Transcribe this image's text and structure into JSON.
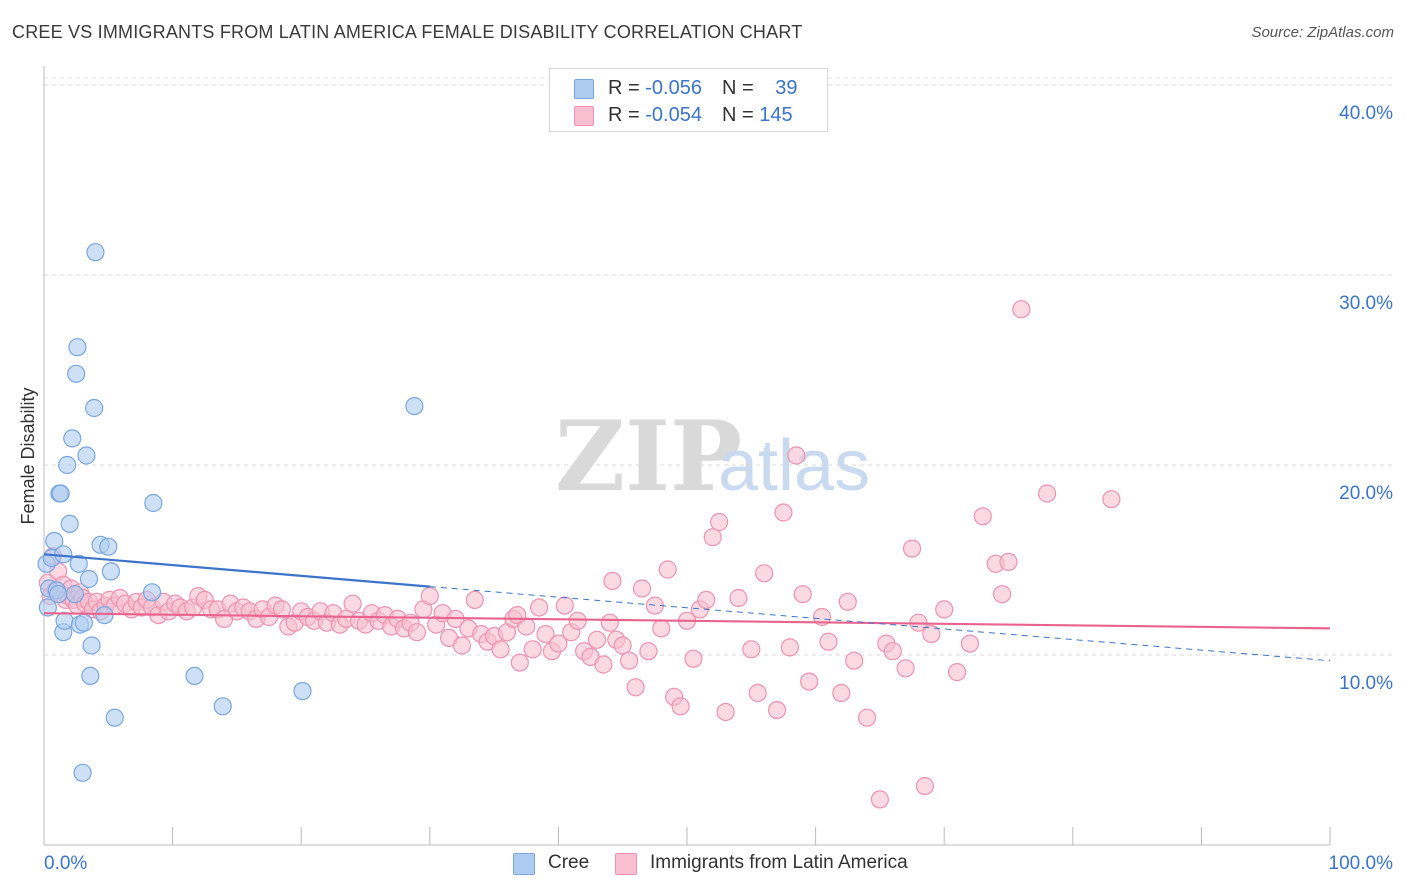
{
  "title": "CREE VS IMMIGRANTS FROM LATIN AMERICA FEMALE DISABILITY CORRELATION CHART",
  "source": "Source: ZipAtlas.com",
  "watermark": {
    "zip": "ZIP",
    "atlas": "atlas"
  },
  "legend": {
    "rows": [
      {
        "r_label": "R = ",
        "r_value": "-0.056",
        "n_label": "N = ",
        "n_value": "39",
        "color": "#aecbf0",
        "border": "#7aa6e0"
      },
      {
        "r_label": "R = ",
        "r_value": "-0.054",
        "n_label": "N = ",
        "n_value": "145",
        "color": "#f7bfd0",
        "border": "#ee92b0"
      }
    ]
  },
  "bottom_legend": [
    {
      "label": "Cree",
      "color": "#aecbf0",
      "border": "#7aa6e0"
    },
    {
      "label": "Immigrants from Latin America",
      "color": "#f7bfd0",
      "border": "#ee92b0"
    }
  ],
  "chart_data": {
    "type": "scatter",
    "ylabel": "Female Disability",
    "xlabel": "",
    "xlim": [
      0,
      100
    ],
    "ylim": [
      0,
      41
    ],
    "x_tick_labels": [
      "0.0%",
      "100.0%"
    ],
    "y_ticks": [
      10,
      20,
      30,
      40
    ],
    "y_tick_labels": [
      "10.0%",
      "20.0%",
      "30.0%",
      "40.0%"
    ],
    "grid": true,
    "colors": {
      "cree": "#3b74c9",
      "cree_fill": "#aecbf0",
      "latin": "#e8648e",
      "latin_fill": "#f7bfd0",
      "axis_text": "#3b74c9"
    },
    "series": [
      {
        "name": "Cree",
        "points": [
          [
            0.2,
            14.8
          ],
          [
            0.4,
            13.5
          ],
          [
            0.6,
            15.1
          ],
          [
            0.8,
            16.0
          ],
          [
            1.0,
            13.4
          ],
          [
            1.2,
            18.5
          ],
          [
            1.3,
            18.5
          ],
          [
            1.5,
            15.3
          ],
          [
            1.5,
            11.2
          ],
          [
            1.6,
            11.8
          ],
          [
            1.8,
            20.0
          ],
          [
            2.0,
            16.9
          ],
          [
            2.2,
            21.4
          ],
          [
            2.4,
            13.2
          ],
          [
            2.5,
            24.8
          ],
          [
            2.6,
            26.2
          ],
          [
            2.7,
            14.8
          ],
          [
            2.8,
            11.6
          ],
          [
            3.0,
            3.8
          ],
          [
            3.1,
            11.7
          ],
          [
            3.3,
            20.5
          ],
          [
            3.5,
            14.0
          ],
          [
            3.6,
            8.9
          ],
          [
            3.7,
            10.5
          ],
          [
            3.9,
            23.0
          ],
          [
            4.0,
            31.2
          ],
          [
            4.4,
            15.8
          ],
          [
            4.7,
            12.1
          ],
          [
            5.0,
            15.7
          ],
          [
            5.2,
            14.4
          ],
          [
            5.5,
            6.7
          ],
          [
            8.4,
            13.3
          ],
          [
            8.5,
            18.0
          ],
          [
            11.7,
            8.9
          ],
          [
            13.9,
            7.3
          ],
          [
            20.1,
            8.1
          ],
          [
            28.8,
            23.1
          ],
          [
            0.3,
            12.5
          ],
          [
            1.1,
            13.2
          ]
        ],
        "trend_solid": [
          [
            0,
            15.3
          ],
          [
            30,
            13.6
          ]
        ],
        "trend_dashed": [
          [
            30,
            13.6
          ],
          [
            100,
            9.7
          ]
        ]
      },
      {
        "name": "Immigrants from Latin America",
        "points": [
          [
            0.3,
            13.8
          ],
          [
            0.5,
            13.1
          ],
          [
            0.7,
            15.2
          ],
          [
            0.9,
            13.4
          ],
          [
            1.1,
            14.4
          ],
          [
            1.3,
            13.2
          ],
          [
            1.5,
            13.7
          ],
          [
            1.7,
            12.9
          ],
          [
            1.9,
            13.1
          ],
          [
            2.1,
            13.5
          ],
          [
            2.3,
            12.9
          ],
          [
            2.6,
            12.6
          ],
          [
            2.8,
            13.3
          ],
          [
            3.0,
            13.0
          ],
          [
            3.2,
            12.7
          ],
          [
            3.5,
            12.8
          ],
          [
            3.8,
            12.4
          ],
          [
            4.1,
            12.8
          ],
          [
            4.4,
            12.3
          ],
          [
            4.8,
            12.6
          ],
          [
            5.1,
            12.9
          ],
          [
            5.5,
            12.6
          ],
          [
            5.9,
            13.0
          ],
          [
            6.3,
            12.7
          ],
          [
            6.8,
            12.4
          ],
          [
            7.2,
            12.8
          ],
          [
            7.6,
            12.5
          ],
          [
            8.0,
            12.9
          ],
          [
            8.4,
            12.5
          ],
          [
            8.9,
            12.1
          ],
          [
            9.3,
            12.8
          ],
          [
            9.7,
            12.3
          ],
          [
            10.2,
            12.7
          ],
          [
            10.6,
            12.5
          ],
          [
            11.1,
            12.3
          ],
          [
            11.6,
            12.5
          ],
          [
            12.0,
            13.1
          ],
          [
            12.5,
            12.9
          ],
          [
            13.0,
            12.4
          ],
          [
            13.5,
            12.4
          ],
          [
            14.0,
            11.9
          ],
          [
            14.5,
            12.7
          ],
          [
            15.0,
            12.3
          ],
          [
            15.5,
            12.5
          ],
          [
            16.0,
            12.3
          ],
          [
            16.5,
            11.9
          ],
          [
            17.0,
            12.4
          ],
          [
            17.5,
            12.0
          ],
          [
            18.0,
            12.6
          ],
          [
            18.5,
            12.4
          ],
          [
            19.0,
            11.5
          ],
          [
            19.5,
            11.7
          ],
          [
            20.0,
            12.3
          ],
          [
            20.5,
            12.0
          ],
          [
            21.0,
            11.8
          ],
          [
            21.5,
            12.3
          ],
          [
            22.0,
            11.7
          ],
          [
            22.5,
            12.2
          ],
          [
            23.0,
            11.6
          ],
          [
            23.5,
            11.9
          ],
          [
            24.0,
            12.7
          ],
          [
            24.5,
            11.8
          ],
          [
            25.0,
            11.6
          ],
          [
            25.5,
            12.2
          ],
          [
            26.0,
            11.8
          ],
          [
            26.5,
            12.1
          ],
          [
            27.0,
            11.5
          ],
          [
            27.5,
            11.9
          ],
          [
            28.0,
            11.4
          ],
          [
            28.5,
            11.7
          ],
          [
            29.0,
            11.2
          ],
          [
            29.5,
            12.4
          ],
          [
            30.0,
            13.1
          ],
          [
            30.5,
            11.6
          ],
          [
            31.0,
            12.2
          ],
          [
            31.5,
            10.9
          ],
          [
            32.0,
            11.9
          ],
          [
            32.5,
            10.5
          ],
          [
            33.0,
            11.4
          ],
          [
            33.5,
            12.9
          ],
          [
            34.0,
            11.1
          ],
          [
            34.5,
            10.7
          ],
          [
            35.0,
            11.0
          ],
          [
            35.5,
            10.3
          ],
          [
            36.0,
            11.2
          ],
          [
            36.5,
            11.9
          ],
          [
            37.0,
            9.6
          ],
          [
            37.5,
            11.5
          ],
          [
            38.0,
            10.3
          ],
          [
            38.5,
            12.5
          ],
          [
            39.0,
            11.1
          ],
          [
            39.5,
            10.2
          ],
          [
            40.0,
            10.6
          ],
          [
            40.5,
            12.6
          ],
          [
            41.0,
            11.2
          ],
          [
            41.5,
            11.8
          ],
          [
            42.0,
            10.2
          ],
          [
            42.5,
            9.9
          ],
          [
            43.0,
            10.8
          ],
          [
            43.5,
            9.5
          ],
          [
            44.0,
            11.7
          ],
          [
            44.5,
            10.8
          ],
          [
            45.0,
            10.5
          ],
          [
            45.5,
            9.7
          ],
          [
            46.0,
            8.3
          ],
          [
            46.5,
            13.5
          ],
          [
            47.0,
            10.2
          ],
          [
            47.5,
            12.6
          ],
          [
            48.0,
            11.4
          ],
          [
            48.5,
            14.5
          ],
          [
            49.0,
            7.8
          ],
          [
            49.5,
            7.3
          ],
          [
            50.0,
            11.8
          ],
          [
            50.5,
            9.8
          ],
          [
            51.0,
            12.4
          ],
          [
            51.5,
            12.9
          ],
          [
            52.0,
            16.2
          ],
          [
            52.5,
            17.0
          ],
          [
            53.0,
            7.0
          ],
          [
            54.0,
            13.0
          ],
          [
            55.0,
            10.3
          ],
          [
            55.5,
            8.0
          ],
          [
            56.0,
            14.3
          ],
          [
            57.0,
            7.1
          ],
          [
            57.5,
            17.5
          ],
          [
            58.0,
            10.4
          ],
          [
            59.0,
            13.2
          ],
          [
            59.5,
            8.6
          ],
          [
            60.5,
            12.0
          ],
          [
            61.0,
            10.7
          ],
          [
            62.0,
            8.0
          ],
          [
            63.0,
            9.7
          ],
          [
            64.0,
            6.7
          ],
          [
            65.0,
            2.4
          ],
          [
            65.5,
            10.6
          ],
          [
            66.0,
            10.2
          ],
          [
            67.0,
            9.3
          ],
          [
            67.5,
            15.6
          ],
          [
            68.0,
            11.7
          ],
          [
            69.0,
            11.1
          ],
          [
            70.0,
            12.4
          ],
          [
            71.0,
            9.1
          ],
          [
            72.0,
            10.6
          ],
          [
            73.0,
            17.3
          ],
          [
            74.0,
            14.8
          ],
          [
            74.5,
            13.2
          ],
          [
            75.0,
            14.9
          ],
          [
            76.0,
            28.2
          ],
          [
            78.0,
            18.5
          ],
          [
            83.0,
            18.2
          ],
          [
            58.5,
            20.5
          ],
          [
            68.5,
            3.1
          ],
          [
            62.5,
            12.8
          ],
          [
            36.8,
            12.1
          ],
          [
            44.2,
            13.9
          ]
        ],
        "trend_solid": [
          [
            0,
            12.2
          ],
          [
            100,
            11.4
          ]
        ]
      }
    ]
  }
}
